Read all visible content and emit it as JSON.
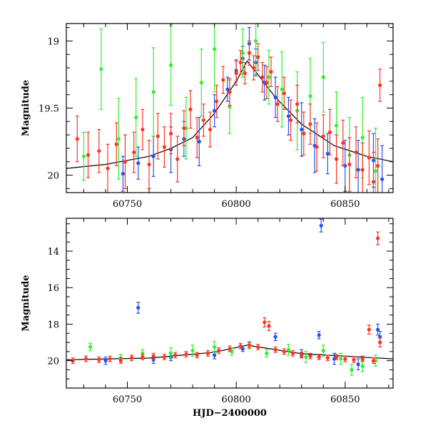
{
  "chart_data": [
    {
      "type": "scatter",
      "panel": "top",
      "xlabel": "",
      "ylabel": "Magnitude",
      "xlim": [
        60722,
        60872
      ],
      "ylim": [
        20.13,
        18.87
      ],
      "y_inverted": true,
      "x_ticks": [
        60750,
        60800,
        60850
      ],
      "x_tick_labels": [
        "60750",
        "60800",
        "60850"
      ],
      "y_ticks": [
        19,
        19.5,
        20
      ],
      "y_tick_labels": [
        "19",
        "19.5",
        "20"
      ],
      "grid": false,
      "legend": "none",
      "series": [
        {
          "color": "#2255ee",
          "points": [
            [
              60748,
              19.99,
              0.13
            ],
            [
              60755,
              19.91,
              0.12
            ],
            [
              60762,
              19.86,
              0.15
            ],
            [
              60770,
              19.81,
              0.17
            ],
            [
              60776,
              19.73,
              0.13
            ],
            [
              60783,
              19.75,
              0.18
            ],
            [
              60790,
              19.52,
              0.12
            ],
            [
              60796,
              19.36,
              0.09
            ],
            [
              60800,
              19.22,
              0.08
            ],
            [
              60803,
              19.13,
              0.09
            ],
            [
              60806,
              19.02,
              0.12
            ],
            [
              60809,
              19.16,
              0.1
            ],
            [
              60813,
              19.31,
              0.13
            ],
            [
              60818,
              19.42,
              0.15
            ],
            [
              60824,
              19.56,
              0.14
            ],
            [
              60830,
              19.66,
              0.2
            ],
            [
              60836,
              19.78,
              0.2
            ],
            [
              60842,
              19.84,
              0.15
            ],
            [
              60850,
              19.93,
              0.19
            ],
            [
              60856,
              19.96,
              0.22
            ],
            [
              60863,
              19.89,
              0.2
            ],
            [
              60867,
              20.03,
              0.25
            ]
          ]
        },
        {
          "color": "#33ee33",
          "points": [
            [
              60730,
              19.86,
              0.18
            ],
            [
              60738,
              19.21,
              0.3
            ],
            [
              60746,
              19.73,
              0.3
            ],
            [
              60754,
              19.57,
              0.29
            ],
            [
              60762,
              19.38,
              0.33
            ],
            [
              60770,
              19.18,
              0.3
            ],
            [
              60777,
              19.65,
              0.23
            ],
            [
              60784,
              19.31,
              0.25
            ],
            [
              60790,
              19.06,
              0.32
            ],
            [
              60797,
              19.49,
              0.2
            ],
            [
              60803,
              19.09,
              0.18
            ],
            [
              60809,
              19.0,
              0.25
            ],
            [
              60815,
              19.27,
              0.2
            ],
            [
              60821,
              19.36,
              0.28
            ],
            [
              60828,
              19.52,
              0.29
            ],
            [
              60834,
              19.41,
              0.28
            ],
            [
              60840,
              19.27,
              0.26
            ],
            [
              60846,
              19.63,
              0.25
            ],
            [
              60852,
              19.85,
              0.28
            ],
            [
              60858,
              19.72,
              0.3
            ],
            [
              60864,
              19.97,
              0.32
            ]
          ]
        },
        {
          "color": "#ff3322",
          "points": [
            [
              60727,
              19.73,
              0.17
            ],
            [
              60732,
              19.85,
              0.17
            ],
            [
              60737,
              19.82,
              0.16
            ],
            [
              60741,
              19.95,
              0.18
            ],
            [
              60745,
              19.77,
              0.16
            ],
            [
              60749,
              19.9,
              0.2
            ],
            [
              60753,
              19.83,
              0.15
            ],
            [
              60757,
              19.66,
              0.15
            ],
            [
              60760,
              19.92,
              0.18
            ],
            [
              60764,
              19.71,
              0.17
            ],
            [
              60767,
              19.79,
              0.15
            ],
            [
              60770,
              19.69,
              0.15
            ],
            [
              60773,
              19.88,
              0.17
            ],
            [
              60776,
              19.65,
              0.13
            ],
            [
              60779,
              19.51,
              0.14
            ],
            [
              60782,
              19.72,
              0.15
            ],
            [
              60785,
              19.59,
              0.12
            ],
            [
              60788,
              19.66,
              0.13
            ],
            [
              60791,
              19.45,
              0.12
            ],
            [
              60794,
              19.29,
              0.1
            ],
            [
              60797,
              19.38,
              0.1
            ],
            [
              60800,
              19.24,
              0.09
            ],
            [
              60802,
              19.16,
              0.09
            ],
            [
              60804,
              19.24,
              0.08
            ],
            [
              60806,
              19.09,
              0.09
            ],
            [
              60808,
              19.2,
              0.09
            ],
            [
              60810,
              19.12,
              0.1
            ],
            [
              60812,
              19.27,
              0.11
            ],
            [
              60814,
              19.31,
              0.12
            ],
            [
              60816,
              19.23,
              0.11
            ],
            [
              60819,
              19.47,
              0.13
            ],
            [
              60822,
              19.39,
              0.12
            ],
            [
              60825,
              19.59,
              0.15
            ],
            [
              60828,
              19.47,
              0.14
            ],
            [
              60831,
              19.69,
              0.16
            ],
            [
              60834,
              19.62,
              0.15
            ],
            [
              60837,
              19.79,
              0.18
            ],
            [
              60840,
              19.71,
              0.16
            ],
            [
              60843,
              19.68,
              0.17
            ],
            [
              60846,
              19.88,
              0.18
            ],
            [
              60849,
              19.76,
              0.17
            ],
            [
              60852,
              19.92,
              0.2
            ],
            [
              60855,
              19.83,
              0.19
            ],
            [
              60858,
              19.96,
              0.2
            ],
            [
              60861,
              19.87,
              0.2
            ],
            [
              60863,
              20.05,
              0.22
            ],
            [
              60865,
              19.93,
              0.2
            ],
            [
              60866,
              19.33,
              0.12
            ]
          ]
        }
      ],
      "model_curve": {
        "color": "#000000",
        "points": [
          [
            60722,
            19.95
          ],
          [
            60740,
            19.92
          ],
          [
            60760,
            19.86
          ],
          [
            60770,
            19.8
          ],
          [
            60780,
            19.72
          ],
          [
            60790,
            19.54
          ],
          [
            60800,
            19.3
          ],
          [
            60805,
            19.15
          ],
          [
            60810,
            19.25
          ],
          [
            60818,
            19.42
          ],
          [
            60830,
            19.62
          ],
          [
            60845,
            19.78
          ],
          [
            60860,
            19.86
          ],
          [
            60872,
            19.9
          ]
        ]
      }
    },
    {
      "type": "scatter",
      "panel": "bottom",
      "xlabel": "HJD−2400000",
      "ylabel": "Magnitude",
      "xlim": [
        60722,
        60872
      ],
      "ylim": [
        21.5,
        12.2
      ],
      "y_inverted": true,
      "x_ticks": [
        60750,
        60800,
        60850
      ],
      "x_tick_labels": [
        "60750",
        "60800",
        "60850"
      ],
      "y_ticks": [
        14,
        16,
        18,
        20
      ],
      "y_tick_labels": [
        "14",
        "16",
        "18",
        "20"
      ],
      "grid": false,
      "legend": "none",
      "series": [
        {
          "color": "#2255ee",
          "points": [
            [
              60740,
              20.0,
              0.2
            ],
            [
              60755,
              17.1,
              0.3
            ],
            [
              60762,
              19.95,
              0.2
            ],
            [
              60770,
              19.8,
              0.2
            ],
            [
              60790,
              19.7,
              0.2
            ],
            [
              60803,
              19.35,
              0.15
            ],
            [
              60818,
              18.7,
              0.2
            ],
            [
              60830,
              19.6,
              0.2
            ],
            [
              60838,
              18.6,
              0.2
            ],
            [
              60839,
              12.6,
              0.35
            ],
            [
              60845,
              19.9,
              0.3
            ],
            [
              60856,
              20.2,
              0.3
            ],
            [
              60865,
              18.3,
              0.3
            ],
            [
              60866,
              18.7,
              0.3
            ]
          ]
        },
        {
          "color": "#33ee33",
          "points": [
            [
              60733,
              19.25,
              0.2
            ],
            [
              60747,
              19.85,
              0.2
            ],
            [
              60757,
              19.6,
              0.2
            ],
            [
              60770,
              19.6,
              0.3
            ],
            [
              60780,
              19.45,
              0.3
            ],
            [
              60790,
              19.25,
              0.3
            ],
            [
              60798,
              19.5,
              0.2
            ],
            [
              60806,
              19.15,
              0.2
            ],
            [
              60814,
              19.6,
              0.2
            ],
            [
              60824,
              19.4,
              0.3
            ],
            [
              60832,
              19.8,
              0.3
            ],
            [
              60840,
              19.45,
              0.3
            ],
            [
              60848,
              19.9,
              0.3
            ],
            [
              60853,
              20.5,
              0.3
            ],
            [
              60858,
              20.3,
              0.3
            ],
            [
              60864,
              20.0,
              0.3
            ]
          ]
        },
        {
          "color": "#ff3322",
          "points": [
            [
              60725,
              20.0,
              0.15
            ],
            [
              60731,
              19.9,
              0.15
            ],
            [
              60737,
              19.95,
              0.15
            ],
            [
              60742,
              19.9,
              0.15
            ],
            [
              60747,
              20.0,
              0.15
            ],
            [
              60752,
              19.85,
              0.15
            ],
            [
              60757,
              19.8,
              0.15
            ],
            [
              60762,
              19.75,
              0.15
            ],
            [
              60767,
              19.8,
              0.15
            ],
            [
              60772,
              19.7,
              0.15
            ],
            [
              60777,
              19.65,
              0.15
            ],
            [
              60782,
              19.7,
              0.15
            ],
            [
              60787,
              19.6,
              0.15
            ],
            [
              60792,
              19.45,
              0.15
            ],
            [
              60797,
              19.35,
              0.15
            ],
            [
              60802,
              19.2,
              0.15
            ],
            [
              60806,
              19.15,
              0.15
            ],
            [
              60810,
              19.25,
              0.15
            ],
            [
              60813,
              17.9,
              0.25
            ],
            [
              60815,
              18.1,
              0.25
            ],
            [
              60818,
              19.4,
              0.15
            ],
            [
              60822,
              19.5,
              0.15
            ],
            [
              60826,
              19.6,
              0.15
            ],
            [
              60830,
              19.7,
              0.15
            ],
            [
              60834,
              19.75,
              0.15
            ],
            [
              60838,
              19.8,
              0.15
            ],
            [
              60842,
              19.85,
              0.15
            ],
            [
              60846,
              19.8,
              0.15
            ],
            [
              60850,
              19.9,
              0.15
            ],
            [
              60854,
              19.95,
              0.15
            ],
            [
              60858,
              19.9,
              0.15
            ],
            [
              60861,
              18.3,
              0.25
            ],
            [
              60863,
              20.0,
              0.15
            ],
            [
              60865,
              13.3,
              0.35
            ],
            [
              60866,
              19.0,
              0.25
            ]
          ]
        }
      ],
      "model_curve": {
        "color": "#000000",
        "points": [
          [
            60722,
            19.95
          ],
          [
            60760,
            19.86
          ],
          [
            60790,
            19.54
          ],
          [
            60805,
            19.15
          ],
          [
            60830,
            19.62
          ],
          [
            60872,
            19.9
          ]
        ]
      }
    }
  ]
}
